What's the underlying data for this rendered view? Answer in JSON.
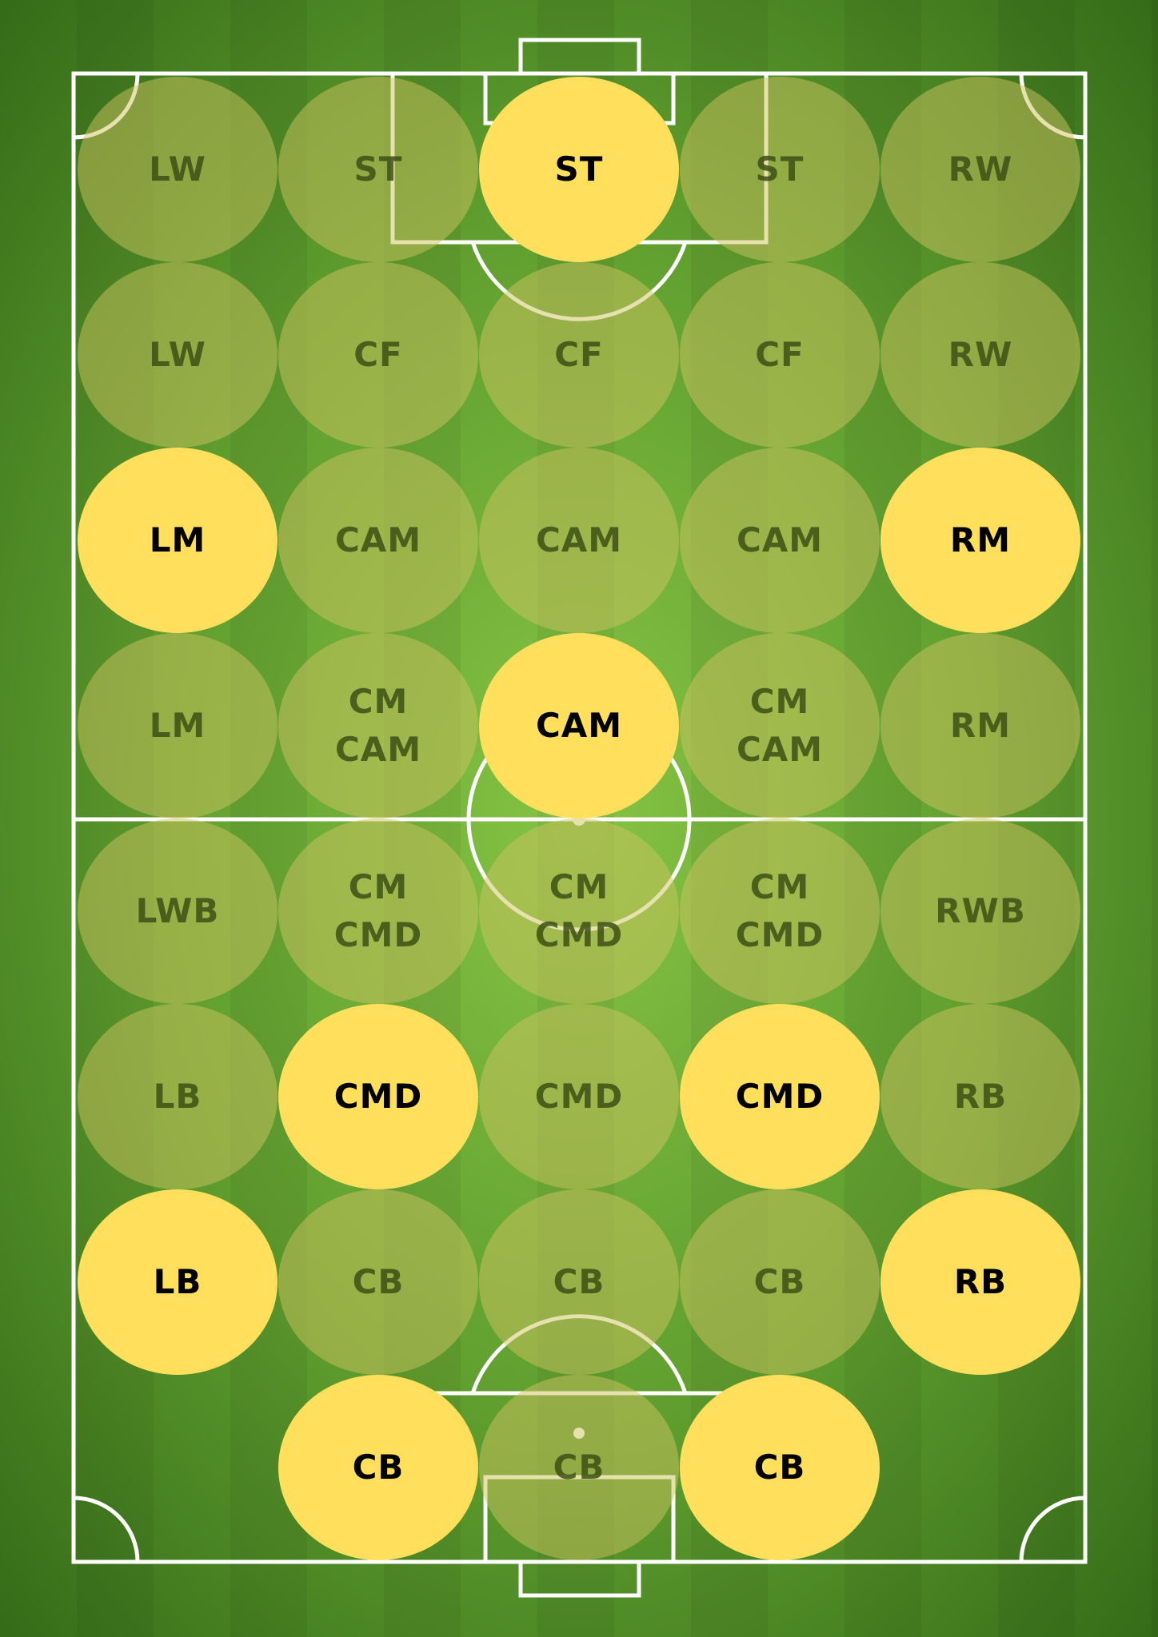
{
  "colors": {
    "grass_light": "#7cba3e",
    "grass_dark": "#3f7a1c",
    "line": "#ffffff",
    "active_fill": "#ffdf5c",
    "active_text": "#000000",
    "inactive_fill": "rgba(205,196,95,0.50)",
    "inactive_text": "#3c5014"
  },
  "rows": [
    [
      {
        "lines": [
          "LW"
        ],
        "active": false
      },
      {
        "lines": [
          "ST"
        ],
        "active": false
      },
      {
        "lines": [
          "ST"
        ],
        "active": true
      },
      {
        "lines": [
          "ST"
        ],
        "active": false
      },
      {
        "lines": [
          "RW"
        ],
        "active": false
      }
    ],
    [
      {
        "lines": [
          "LW"
        ],
        "active": false
      },
      {
        "lines": [
          "CF"
        ],
        "active": false
      },
      {
        "lines": [
          "CF"
        ],
        "active": false
      },
      {
        "lines": [
          "CF"
        ],
        "active": false
      },
      {
        "lines": [
          "RW"
        ],
        "active": false
      }
    ],
    [
      {
        "lines": [
          "LM"
        ],
        "active": true
      },
      {
        "lines": [
          "CAM"
        ],
        "active": false
      },
      {
        "lines": [
          "CAM"
        ],
        "active": false
      },
      {
        "lines": [
          "CAM"
        ],
        "active": false
      },
      {
        "lines": [
          "RM"
        ],
        "active": true
      }
    ],
    [
      {
        "lines": [
          "LM"
        ],
        "active": false
      },
      {
        "lines": [
          "CM",
          "CAM"
        ],
        "active": false
      },
      {
        "lines": [
          "CAM"
        ],
        "active": true
      },
      {
        "lines": [
          "CM",
          "CAM"
        ],
        "active": false
      },
      {
        "lines": [
          "RM"
        ],
        "active": false
      }
    ],
    [
      {
        "lines": [
          "LWB"
        ],
        "active": false
      },
      {
        "lines": [
          "CM",
          "CMD"
        ],
        "active": false
      },
      {
        "lines": [
          "CM",
          "CMD"
        ],
        "active": false
      },
      {
        "lines": [
          "CM",
          "CMD"
        ],
        "active": false
      },
      {
        "lines": [
          "RWB"
        ],
        "active": false
      }
    ],
    [
      {
        "lines": [
          "LB"
        ],
        "active": false
      },
      {
        "lines": [
          "CMD"
        ],
        "active": true
      },
      {
        "lines": [
          "CMD"
        ],
        "active": false
      },
      {
        "lines": [
          "CMD"
        ],
        "active": true
      },
      {
        "lines": [
          "RB"
        ],
        "active": false
      }
    ],
    [
      {
        "lines": [
          "LB"
        ],
        "active": true
      },
      {
        "lines": [
          "CB"
        ],
        "active": false
      },
      {
        "lines": [
          "CB"
        ],
        "active": false
      },
      {
        "lines": [
          "CB"
        ],
        "active": false
      },
      {
        "lines": [
          "RB"
        ],
        "active": true
      }
    ],
    [
      null,
      {
        "lines": [
          "CB"
        ],
        "active": true
      },
      {
        "lines": [
          "CB"
        ],
        "active": false
      },
      {
        "lines": [
          "CB"
        ],
        "active": true
      },
      null
    ]
  ]
}
